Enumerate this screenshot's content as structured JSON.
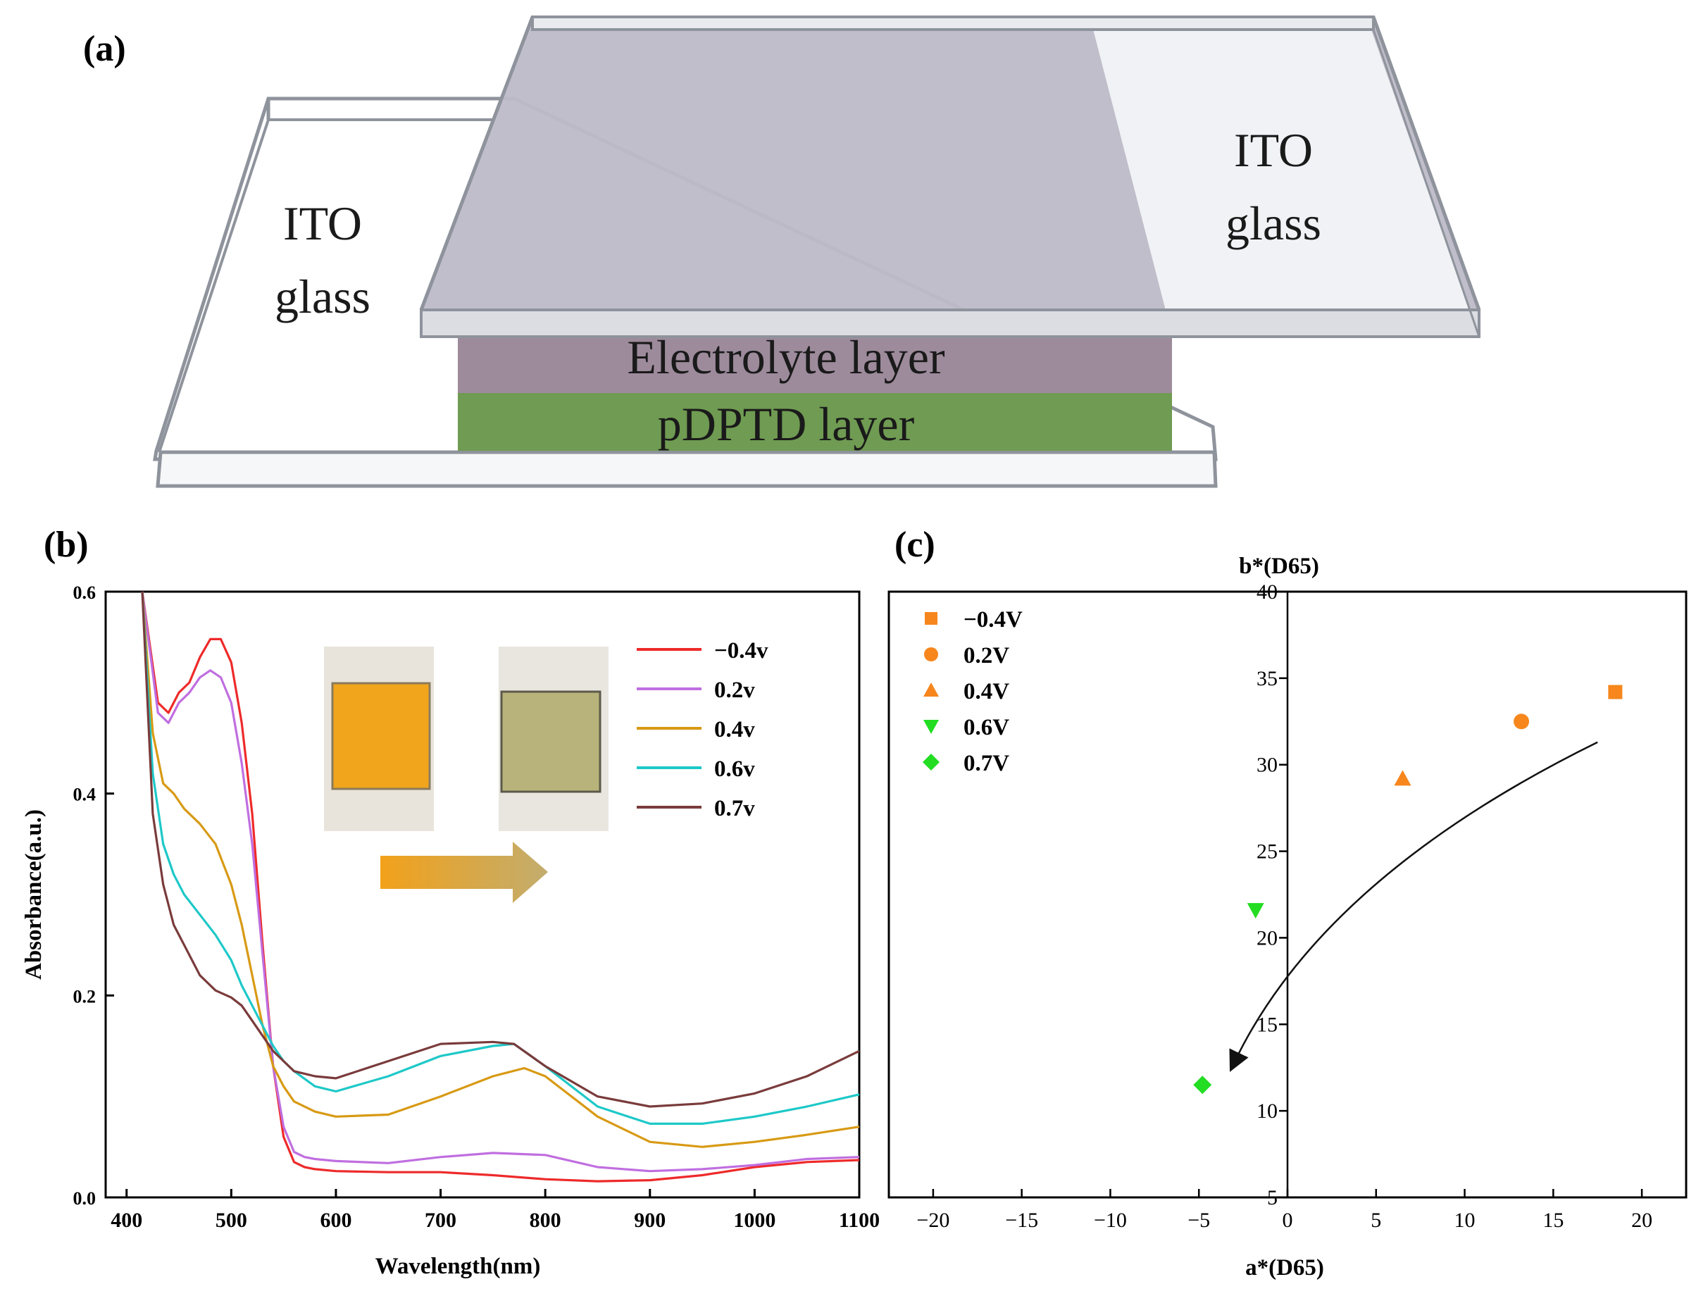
{
  "panels": {
    "a": {
      "label": "(a)",
      "left_glass_line1": "ITO",
      "left_glass_line2": "glass",
      "right_glass_line1": "ITO",
      "right_glass_line2": "glass",
      "electrolyte_label": "Electrolyte layer",
      "film_label": "pDPTD layer",
      "colors": {
        "electrolyte": "#9b8a9a",
        "film": "#6f9a52",
        "top_glass": "#b9b7c4",
        "glass_edge": "#8a8f99"
      }
    },
    "b": {
      "label": "(b)"
    },
    "c": {
      "label": "(c)"
    }
  },
  "chart_data": [
    {
      "id": "b",
      "type": "line",
      "title": "",
      "xlabel": "Wavelength(nm)",
      "ylabel": "Absorbance(a.u.)",
      "xlim": [
        380,
        1100
      ],
      "ylim": [
        0.0,
        0.6
      ],
      "xticks": [
        "400",
        "500",
        "600",
        "700",
        "800",
        "900",
        "1000",
        "1100"
      ],
      "yticks": [
        "0.0",
        "0.2",
        "0.4",
        "0.6"
      ],
      "xtick_values": [
        400,
        500,
        600,
        700,
        800,
        900,
        1000,
        1100
      ],
      "ytick_values": [
        0.0,
        0.2,
        0.4,
        0.6
      ],
      "legend_position": "top-right",
      "series": [
        {
          "name": "−0.4v",
          "color": "#ee2a2a",
          "x": [
            415,
            430,
            440,
            450,
            460,
            470,
            480,
            490,
            500,
            510,
            520,
            530,
            540,
            550,
            560,
            570,
            580,
            600,
            650,
            700,
            750,
            800,
            850,
            900,
            950,
            1000,
            1050,
            1100
          ],
          "y": [
            0.6,
            0.49,
            0.48,
            0.5,
            0.51,
            0.535,
            0.553,
            0.553,
            0.53,
            0.47,
            0.38,
            0.25,
            0.13,
            0.06,
            0.035,
            0.03,
            0.028,
            0.026,
            0.025,
            0.025,
            0.022,
            0.018,
            0.016,
            0.017,
            0.022,
            0.03,
            0.035,
            0.037
          ]
        },
        {
          "name": "0.2v",
          "color": "#c06ee0",
          "x": [
            415,
            430,
            440,
            450,
            460,
            470,
            480,
            490,
            500,
            510,
            520,
            530,
            540,
            550,
            560,
            570,
            580,
            600,
            650,
            700,
            750,
            800,
            850,
            900,
            950,
            1000,
            1050,
            1100
          ],
          "y": [
            0.6,
            0.48,
            0.47,
            0.49,
            0.5,
            0.515,
            0.522,
            0.515,
            0.49,
            0.43,
            0.35,
            0.24,
            0.13,
            0.07,
            0.045,
            0.04,
            0.038,
            0.036,
            0.034,
            0.04,
            0.044,
            0.042,
            0.03,
            0.026,
            0.028,
            0.032,
            0.038,
            0.04
          ]
        },
        {
          "name": "0.4v",
          "color": "#d89a14",
          "x": [
            415,
            425,
            435,
            445,
            455,
            470,
            485,
            500,
            510,
            520,
            530,
            540,
            550,
            560,
            580,
            600,
            650,
            700,
            750,
            780,
            800,
            850,
            900,
            950,
            1000,
            1050,
            1100
          ],
          "y": [
            0.6,
            0.46,
            0.41,
            0.4,
            0.385,
            0.37,
            0.35,
            0.31,
            0.27,
            0.22,
            0.17,
            0.13,
            0.11,
            0.095,
            0.085,
            0.08,
            0.082,
            0.1,
            0.12,
            0.128,
            0.12,
            0.08,
            0.055,
            0.05,
            0.055,
            0.062,
            0.07
          ]
        },
        {
          "name": "0.6v",
          "color": "#1ec8c8",
          "x": [
            415,
            425,
            435,
            445,
            455,
            470,
            485,
            500,
            510,
            520,
            530,
            540,
            550,
            560,
            580,
            600,
            650,
            700,
            750,
            770,
            800,
            850,
            900,
            950,
            1000,
            1050,
            1100
          ],
          "y": [
            0.6,
            0.42,
            0.35,
            0.32,
            0.3,
            0.28,
            0.26,
            0.235,
            0.21,
            0.19,
            0.17,
            0.15,
            0.135,
            0.125,
            0.11,
            0.105,
            0.12,
            0.14,
            0.15,
            0.152,
            0.13,
            0.09,
            0.073,
            0.073,
            0.08,
            0.09,
            0.102
          ]
        },
        {
          "name": "0.7v",
          "color": "#7a3b3b",
          "x": [
            415,
            425,
            435,
            445,
            455,
            470,
            485,
            500,
            510,
            520,
            530,
            540,
            550,
            560,
            580,
            600,
            650,
            700,
            750,
            770,
            800,
            850,
            900,
            950,
            1000,
            1050,
            1100
          ],
          "y": [
            0.6,
            0.38,
            0.31,
            0.27,
            0.25,
            0.22,
            0.205,
            0.198,
            0.19,
            0.175,
            0.16,
            0.145,
            0.135,
            0.125,
            0.12,
            0.118,
            0.135,
            0.152,
            0.154,
            0.152,
            0.13,
            0.1,
            0.09,
            0.093,
            0.103,
            0.12,
            0.145
          ]
        }
      ]
    },
    {
      "id": "c",
      "type": "scatter",
      "title": "",
      "xlabel": "a*(D65)",
      "ylabel": "b*(D65)",
      "xlim": [
        -22.5,
        22.5
      ],
      "ylim": [
        5,
        40
      ],
      "xticks": [
        "−20",
        "−15",
        "−10",
        "−5",
        "0",
        "5",
        "10",
        "15",
        "20"
      ],
      "xtick_values": [
        -20,
        -15,
        -10,
        -5,
        0,
        5,
        10,
        15,
        20
      ],
      "yticks": [
        "5",
        "10",
        "15",
        "20",
        "25",
        "30",
        "35",
        "40"
      ],
      "ytick_values": [
        5,
        10,
        15,
        20,
        25,
        30,
        35,
        40
      ],
      "legend_position": "top-left",
      "series": [
        {
          "name": "−0.4V",
          "marker": "square",
          "color": "#f7861c",
          "x": 18.5,
          "y": 34.2
        },
        {
          "name": "0.2V",
          "marker": "circle",
          "color": "#f7861c",
          "x": 13.2,
          "y": 32.5
        },
        {
          "name": "0.4V",
          "marker": "triangle-up",
          "color": "#f7861c",
          "x": 6.5,
          "y": 29.2
        },
        {
          "name": "0.6V",
          "marker": "triangle-down",
          "color": "#22dd22",
          "x": -1.8,
          "y": 21.6
        },
        {
          "name": "0.7V",
          "marker": "diamond",
          "color": "#22dd22",
          "x": -4.8,
          "y": 11.5
        }
      ],
      "trend_arrow": {
        "from": [
          17.5,
          31.3
        ],
        "via": [
          2.0,
          23.5
        ],
        "to": [
          -3.0,
          12.8
        ]
      }
    }
  ]
}
